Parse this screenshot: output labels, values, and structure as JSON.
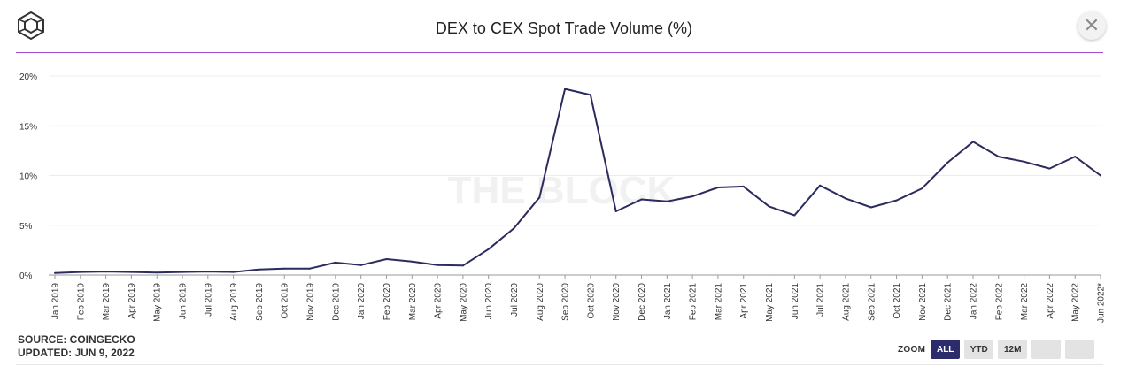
{
  "header": {
    "title": "DEX to CEX Spot Trade Volume (%)",
    "close_symbol": "✕"
  },
  "footer": {
    "source": "SOURCE: COINGECKO",
    "updated": "UPDATED: JUN 9, 2022"
  },
  "zoom": {
    "label": "ZOOM",
    "buttons": [
      "ALL",
      "YTD",
      "12M",
      "",
      ""
    ],
    "active": "ALL"
  },
  "colors": {
    "line": "#2c2b5e",
    "accent": "#a64ad0",
    "grid": "#ececec",
    "active_zoom": "#2c2b6b"
  },
  "chart_data": {
    "type": "line",
    "watermark": "THE BLOCK",
    "categories": [
      "Jan 2019",
      "Feb 2019",
      "Mar 2019",
      "Apr 2019",
      "May 2019",
      "Jun 2019",
      "Jul 2019",
      "Aug 2019",
      "Sep 2019",
      "Oct 2019",
      "Nov 2019",
      "Dec 2019",
      "Jan 2020",
      "Feb 2020",
      "Mar 2020",
      "Apr 2020",
      "May 2020",
      "Jun 2020",
      "Jul 2020",
      "Aug 2020",
      "Sep 2020",
      "Oct 2020",
      "Nov 2020",
      "Dec 2020",
      "Jan 2021",
      "Feb 2021",
      "Mar 2021",
      "Apr 2021",
      "May 2021",
      "Jun 2021",
      "Jul 2021",
      "Aug 2021",
      "Sep 2021",
      "Oct 2021",
      "Nov 2021",
      "Dec 2021",
      "Jan 2022",
      "Feb 2022",
      "Mar 2022",
      "Apr 2022",
      "May 2022",
      "Jun 2022*"
    ],
    "values": [
      0.2,
      0.3,
      0.35,
      0.3,
      0.25,
      0.3,
      0.35,
      0.3,
      0.55,
      0.65,
      0.65,
      1.25,
      1.0,
      1.6,
      1.35,
      1.0,
      0.95,
      2.6,
      4.7,
      7.8,
      18.7,
      18.1,
      6.4,
      7.6,
      7.4,
      7.9,
      8.8,
      8.9,
      6.9,
      6.0,
      9.0,
      7.7,
      6.8,
      7.5,
      8.7,
      11.3,
      13.4,
      11.9,
      11.4,
      10.7,
      11.9,
      10.0
    ],
    "yticks": [
      "20%",
      "15%",
      "10%",
      "5%",
      "0%"
    ],
    "ylim": [
      0,
      20
    ],
    "grid": true
  }
}
